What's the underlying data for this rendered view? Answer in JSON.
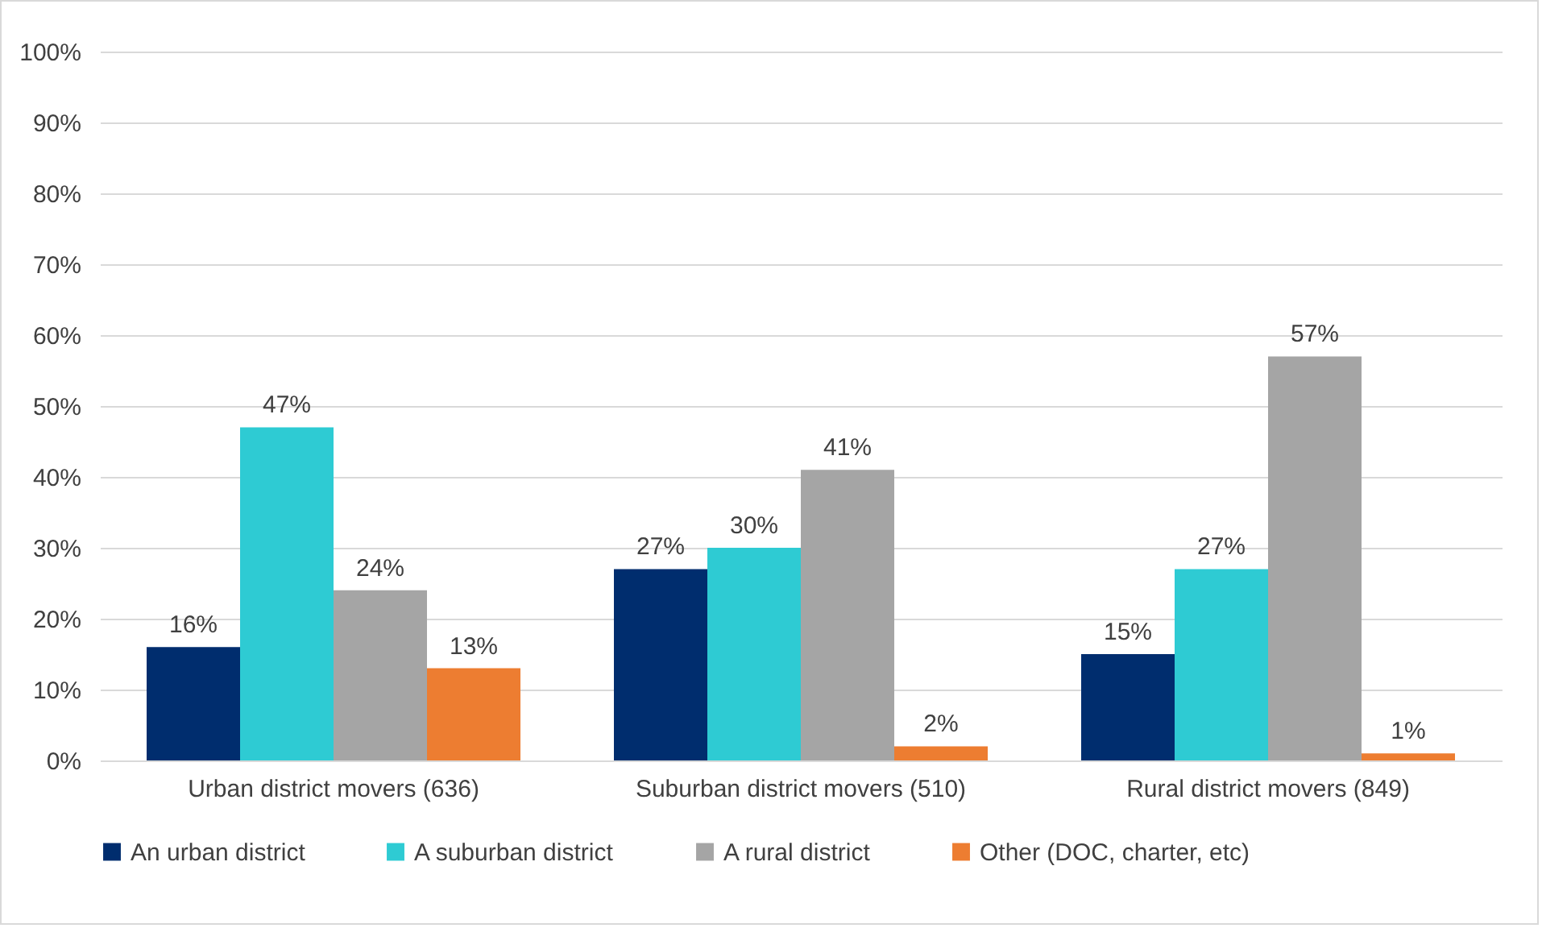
{
  "chart_data": {
    "type": "bar",
    "categories": [
      "Urban district movers (636)",
      "Suburban district movers (510)",
      "Rural district movers (849)"
    ],
    "series": [
      {
        "name": "An urban district",
        "color": "#002d6e",
        "values": [
          16,
          27,
          15
        ],
        "value_labels": [
          "16%",
          "27%",
          "15%"
        ]
      },
      {
        "name": "A suburban district",
        "color": "#2ecbd3",
        "values": [
          47,
          30,
          27
        ],
        "value_labels": [
          "47%",
          "30%",
          "27%"
        ]
      },
      {
        "name": "A rural district",
        "color": "#a5a5a5",
        "values": [
          24,
          41,
          57
        ],
        "value_labels": [
          "24%",
          "41%",
          "57%"
        ]
      },
      {
        "name": "Other (DOC,  charter, etc)",
        "color": "#ed7d31",
        "values": [
          13,
          2,
          1
        ],
        "value_labels": [
          "13%",
          "2%",
          "1%"
        ]
      }
    ],
    "ylim": [
      0,
      100
    ],
    "yticks": [
      {
        "value": 0,
        "label": "0%"
      },
      {
        "value": 10,
        "label": "10%"
      },
      {
        "value": 20,
        "label": "20%"
      },
      {
        "value": 30,
        "label": "30%"
      },
      {
        "value": 40,
        "label": "40%"
      },
      {
        "value": 50,
        "label": "50%"
      },
      {
        "value": 60,
        "label": "60%"
      },
      {
        "value": 70,
        "label": "70%"
      },
      {
        "value": 80,
        "label": "80%"
      },
      {
        "value": 90,
        "label": "90%"
      },
      {
        "value": 100,
        "label": "100%"
      }
    ],
    "grid": "y",
    "legend": "bottom"
  }
}
